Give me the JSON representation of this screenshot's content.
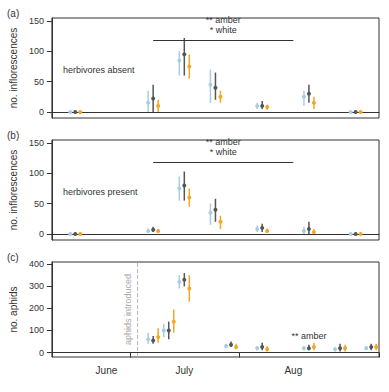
{
  "chart_data": [
    {
      "type": "errorbar",
      "title": "(a)",
      "subtitle": "herbivores absent",
      "y_label": "no. inflorescences",
      "categories": [
        null,
        null,
        null,
        "June",
        null,
        null,
        null,
        null,
        "July",
        null,
        null,
        null,
        null,
        null,
        null,
        "Aug",
        null,
        null,
        null,
        null,
        null
      ],
      "ylim": [
        -10,
        155
      ],
      "yticks": [
        0,
        50,
        100,
        150
      ],
      "grid": false,
      "tick_labels": "y",
      "significance": [
        "** amber",
        "* white"
      ],
      "series": [
        {
          "color": "#a6cee3",
          "values": [
            null,
            0,
            null,
            null,
            null,
            null,
            15,
            null,
            85,
            null,
            45,
            null,
            null,
            10,
            null,
            null,
            25,
            null,
            null,
            0,
            null
          ],
          "lower": [
            null,
            0,
            null,
            null,
            null,
            null,
            0,
            null,
            60,
            null,
            15,
            null,
            null,
            5,
            null,
            null,
            10,
            null,
            null,
            0,
            null
          ],
          "upper": [
            null,
            2,
            null,
            null,
            null,
            null,
            35,
            null,
            100,
            null,
            70,
            null,
            null,
            15,
            null,
            null,
            35,
            null,
            null,
            2,
            null
          ]
        },
        {
          "color": "#555555",
          "values": [
            null,
            0,
            null,
            null,
            null,
            null,
            22,
            null,
            95,
            null,
            40,
            null,
            null,
            10,
            null,
            null,
            30,
            null,
            null,
            0,
            null
          ],
          "lower": [
            null,
            0,
            null,
            null,
            null,
            null,
            0,
            null,
            60,
            null,
            20,
            null,
            null,
            5,
            null,
            null,
            15,
            null,
            null,
            0,
            null
          ],
          "upper": [
            null,
            2,
            null,
            null,
            null,
            null,
            45,
            null,
            122,
            null,
            65,
            null,
            null,
            18,
            null,
            null,
            45,
            null,
            null,
            2,
            null
          ]
        },
        {
          "color": "#f5a623",
          "values": [
            null,
            0,
            null,
            null,
            null,
            null,
            10,
            null,
            75,
            null,
            25,
            null,
            null,
            8,
            null,
            null,
            15,
            null,
            null,
            0,
            null
          ],
          "lower": [
            null,
            0,
            null,
            null,
            null,
            null,
            0,
            null,
            55,
            null,
            15,
            null,
            null,
            3,
            null,
            null,
            5,
            null,
            null,
            0,
            null
          ],
          "upper": [
            null,
            2,
            null,
            null,
            null,
            null,
            20,
            null,
            95,
            null,
            35,
            null,
            null,
            12,
            null,
            null,
            25,
            null,
            null,
            2,
            null
          ]
        }
      ]
    },
    {
      "type": "errorbar",
      "title": "(b)",
      "subtitle": "herbivores present",
      "y_label": "no. inflorescences",
      "categories": [
        null,
        null,
        null,
        "June",
        null,
        null,
        null,
        null,
        "July",
        null,
        null,
        null,
        null,
        null,
        null,
        "Aug",
        null,
        null,
        null,
        null,
        null
      ],
      "ylim": [
        -10,
        155
      ],
      "yticks": [
        0,
        50,
        100,
        150
      ],
      "grid": false,
      "tick_labels": "y",
      "significance": [
        "** amber",
        "* white"
      ],
      "series": [
        {
          "color": "#a6cee3",
          "values": [
            null,
            0,
            null,
            null,
            null,
            null,
            5,
            null,
            75,
            null,
            35,
            null,
            null,
            8,
            null,
            null,
            5,
            null,
            null,
            0,
            null
          ],
          "lower": [
            null,
            0,
            null,
            null,
            null,
            null,
            2,
            null,
            55,
            null,
            15,
            null,
            null,
            3,
            null,
            null,
            0,
            null,
            null,
            0,
            null
          ],
          "upper": [
            null,
            2,
            null,
            null,
            null,
            null,
            9,
            null,
            95,
            null,
            50,
            null,
            null,
            14,
            null,
            null,
            12,
            null,
            null,
            2,
            null
          ]
        },
        {
          "color": "#555555",
          "values": [
            null,
            0,
            null,
            null,
            null,
            null,
            7,
            null,
            80,
            null,
            40,
            null,
            null,
            10,
            null,
            null,
            8,
            null,
            null,
            0,
            null
          ],
          "lower": [
            null,
            0,
            null,
            null,
            null,
            null,
            3,
            null,
            55,
            null,
            20,
            null,
            null,
            3,
            null,
            null,
            0,
            null,
            null,
            0,
            null
          ],
          "upper": [
            null,
            2,
            null,
            null,
            null,
            null,
            12,
            null,
            103,
            null,
            58,
            null,
            null,
            17,
            null,
            null,
            20,
            null,
            null,
            2,
            null
          ]
        },
        {
          "color": "#f5a623",
          "values": [
            null,
            0,
            null,
            null,
            null,
            null,
            5,
            null,
            60,
            null,
            20,
            null,
            null,
            5,
            null,
            null,
            3,
            null,
            null,
            0,
            null
          ],
          "lower": [
            null,
            0,
            null,
            null,
            null,
            null,
            2,
            null,
            45,
            null,
            8,
            null,
            null,
            2,
            null,
            null,
            0,
            null,
            null,
            0,
            null
          ],
          "upper": [
            null,
            2,
            null,
            null,
            null,
            null,
            8,
            null,
            75,
            null,
            30,
            null,
            null,
            9,
            null,
            null,
            8,
            null,
            null,
            2,
            null
          ]
        }
      ]
    },
    {
      "type": "errorbar",
      "title": "(c)",
      "y_label": "no. aphids",
      "categories": [
        null,
        null,
        null,
        "June",
        null,
        null,
        null,
        null,
        "July",
        null,
        null,
        null,
        null,
        null,
        null,
        "Aug",
        null,
        null,
        null,
        null,
        null
      ],
      "ylim": [
        -20,
        410
      ],
      "yticks": [
        0,
        100,
        200,
        300,
        400
      ],
      "grid": false,
      "significance": [
        "** amber"
      ],
      "event_label": "aphids introduced",
      "series": [
        {
          "color": "#a6cee3",
          "values": [
            null,
            null,
            null,
            null,
            null,
            null,
            60,
            100,
            320,
            null,
            null,
            30,
            null,
            20,
            null,
            null,
            20,
            null,
            15,
            null,
            20
          ],
          "lower": [
            null,
            null,
            null,
            null,
            null,
            null,
            40,
            70,
            290,
            null,
            null,
            20,
            null,
            10,
            null,
            null,
            10,
            null,
            5,
            null,
            10
          ],
          "upper": [
            null,
            null,
            null,
            null,
            null,
            null,
            90,
            130,
            350,
            null,
            null,
            40,
            null,
            30,
            null,
            null,
            30,
            null,
            25,
            null,
            30
          ]
        },
        {
          "color": "#555555",
          "values": [
            null,
            null,
            null,
            null,
            null,
            null,
            55,
            100,
            330,
            null,
            null,
            35,
            null,
            25,
            null,
            null,
            20,
            null,
            20,
            null,
            25
          ],
          "lower": [
            null,
            null,
            null,
            null,
            null,
            null,
            40,
            60,
            300,
            null,
            null,
            25,
            null,
            10,
            null,
            null,
            10,
            null,
            5,
            null,
            10
          ],
          "upper": [
            null,
            null,
            null,
            null,
            null,
            null,
            75,
            140,
            360,
            null,
            null,
            50,
            null,
            45,
            null,
            null,
            35,
            null,
            40,
            null,
            40
          ]
        },
        {
          "color": "#f5a623",
          "values": [
            null,
            null,
            null,
            null,
            null,
            null,
            70,
            140,
            290,
            null,
            null,
            25,
            null,
            15,
            null,
            null,
            25,
            null,
            20,
            null,
            25
          ],
          "lower": [
            null,
            null,
            null,
            null,
            null,
            null,
            45,
            90,
            230,
            null,
            null,
            15,
            null,
            5,
            null,
            null,
            10,
            null,
            5,
            null,
            10
          ],
          "upper": [
            null,
            null,
            null,
            null,
            null,
            null,
            110,
            195,
            350,
            null,
            null,
            40,
            null,
            30,
            null,
            null,
            45,
            null,
            35,
            null,
            40
          ]
        }
      ]
    }
  ]
}
